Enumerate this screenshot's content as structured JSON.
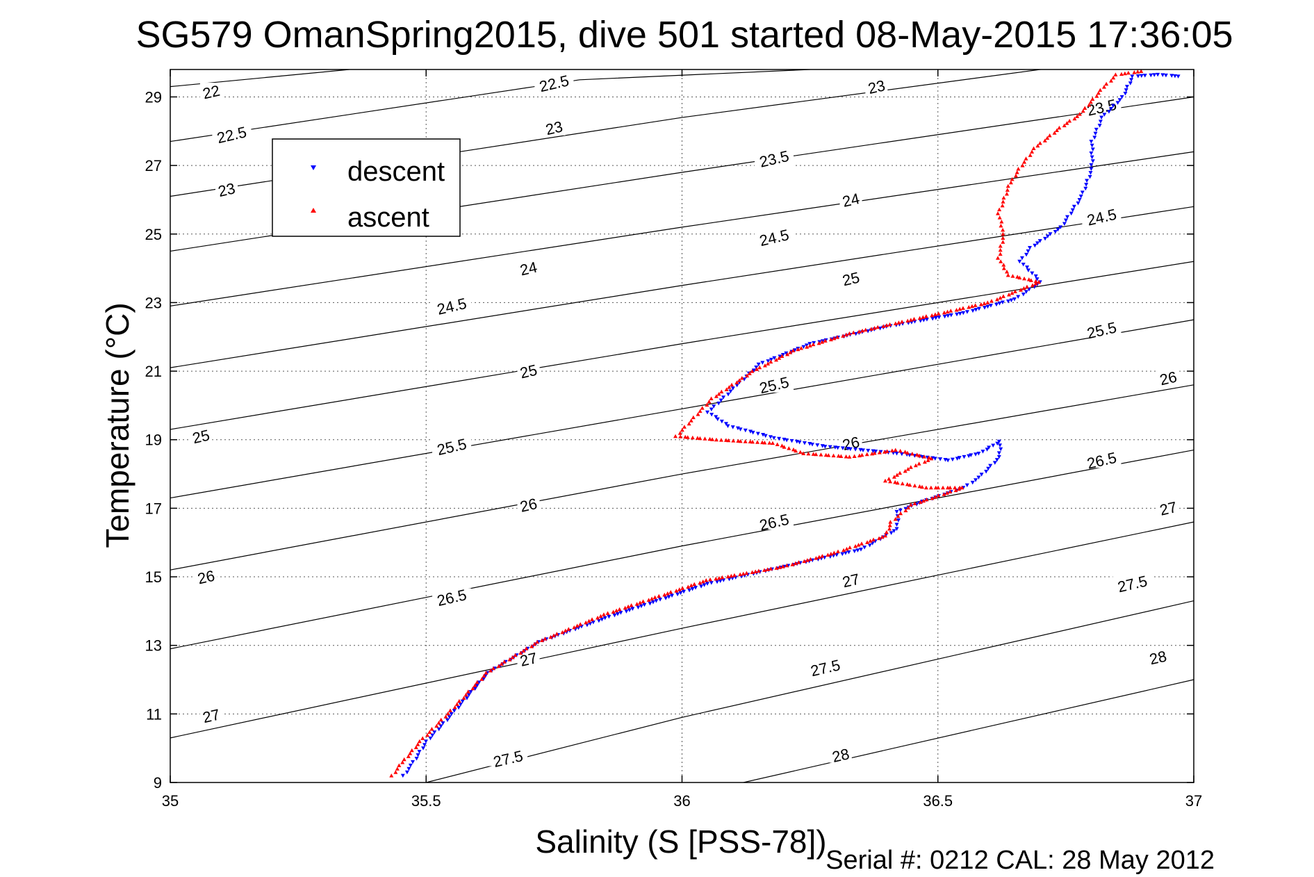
{
  "chart_data": {
    "type": "scatter",
    "title": "SG579 OmanSpring2015, dive 501 started 08-May-2015 17:36:05",
    "xlabel": "Salinity (S [PSS-78])",
    "ylabel": "Temperature (°C)",
    "footer": "Serial #: 0212  CAL: 28 May 2012",
    "xlim": [
      35,
      37
    ],
    "ylim": [
      9,
      29.8
    ],
    "xticks": [
      35,
      35.5,
      36,
      36.5,
      37
    ],
    "xtick_labels": [
      "35",
      "35.5",
      "36",
      "36.5",
      "37"
    ],
    "yticks": [
      9,
      11,
      13,
      15,
      17,
      19,
      21,
      23,
      25,
      27,
      29
    ],
    "ytick_labels": [
      "9",
      "11",
      "13",
      "15",
      "17",
      "19",
      "21",
      "23",
      "25",
      "27",
      "29"
    ],
    "grid": true,
    "legend_position": "upper-left",
    "colors": {
      "descent": "#0000ff",
      "ascent": "#ff0000",
      "axes": "#000000",
      "contour": "#000000",
      "grid": "#555555"
    },
    "sigma_contours": {
      "lines": [
        {
          "label": "22",
          "points": [
            [
              35.0,
              29.3
            ],
            [
              35.35,
              29.8
            ]
          ],
          "label_at": [
            [
              35.08,
              29.15
            ]
          ]
        },
        {
          "label": "22.5",
          "points": [
            [
              35.0,
              27.7
            ],
            [
              35.8,
              29.5
            ],
            [
              36.25,
              29.8
            ]
          ],
          "label_at": [
            [
              35.12,
              27.9
            ],
            [
              35.75,
              29.4
            ]
          ]
        },
        {
          "label": "23",
          "points": [
            [
              35.0,
              26.1
            ],
            [
              36.0,
              28.4
            ],
            [
              37.0,
              30.4
            ]
          ],
          "label_at": [
            [
              35.11,
              26.3
            ],
            [
              35.75,
              28.1
            ],
            [
              36.38,
              29.3
            ]
          ]
        },
        {
          "label": "23.5",
          "points": [
            [
              35.0,
              24.5
            ],
            [
              36.0,
              26.8
            ],
            [
              37.0,
              29.0
            ]
          ],
          "label_at": [
            [
              36.18,
              27.2
            ],
            [
              36.82,
              28.7
            ]
          ]
        },
        {
          "label": "24",
          "points": [
            [
              35.0,
              22.9
            ],
            [
              36.0,
              25.2
            ],
            [
              37.0,
              27.4
            ]
          ],
          "label_at": [
            [
              35.7,
              24.0
            ],
            [
              36.33,
              26.0
            ]
          ]
        },
        {
          "label": "24.5",
          "points": [
            [
              35.0,
              21.1
            ],
            [
              36.0,
              23.5
            ],
            [
              37.0,
              25.8
            ]
          ],
          "label_at": [
            [
              35.55,
              22.9
            ],
            [
              36.18,
              24.9
            ],
            [
              36.82,
              25.5
            ]
          ]
        },
        {
          "label": "25",
          "points": [
            [
              35.0,
              19.3
            ],
            [
              36.0,
              21.8
            ],
            [
              37.0,
              24.2
            ]
          ],
          "label_at": [
            [
              35.06,
              19.1
            ],
            [
              35.7,
              21.0
            ],
            [
              36.33,
              23.7
            ]
          ]
        },
        {
          "label": "25.5",
          "points": [
            [
              35.0,
              17.3
            ],
            [
              36.0,
              19.9
            ],
            [
              37.0,
              22.5
            ]
          ],
          "label_at": [
            [
              35.55,
              18.8
            ],
            [
              36.18,
              20.6
            ],
            [
              36.82,
              22.2
            ]
          ]
        },
        {
          "label": "26",
          "points": [
            [
              35.0,
              15.2
            ],
            [
              36.0,
              18.0
            ],
            [
              37.0,
              20.6
            ]
          ],
          "label_at": [
            [
              35.07,
              15.0
            ],
            [
              35.7,
              17.1
            ],
            [
              36.33,
              18.9
            ],
            [
              36.95,
              20.8
            ]
          ]
        },
        {
          "label": "26.5",
          "points": [
            [
              35.0,
              12.9
            ],
            [
              36.0,
              15.9
            ],
            [
              37.0,
              18.7
            ]
          ],
          "label_at": [
            [
              35.55,
              14.4
            ],
            [
              36.18,
              16.6
            ],
            [
              36.82,
              18.4
            ]
          ]
        },
        {
          "label": "27",
          "points": [
            [
              35.0,
              10.3
            ],
            [
              36.0,
              13.5
            ],
            [
              37.0,
              16.6
            ]
          ],
          "label_at": [
            [
              35.08,
              10.95
            ],
            [
              35.7,
              12.6
            ],
            [
              36.33,
              14.9
            ],
            [
              36.95,
              17.0
            ]
          ]
        },
        {
          "label": "27.5",
          "points": [
            [
              35.5,
              9.0
            ],
            [
              36.0,
              10.9
            ],
            [
              37.0,
              14.3
            ]
          ],
          "label_at": [
            [
              35.66,
              9.7
            ],
            [
              36.28,
              12.35
            ],
            [
              36.88,
              14.8
            ]
          ]
        },
        {
          "label": "28",
          "points": [
            [
              36.12,
              9.0
            ],
            [
              37.0,
              12.0
            ]
          ],
          "label_at": [
            [
              36.31,
              9.8
            ],
            [
              36.93,
              12.65
            ]
          ]
        }
      ]
    },
    "series": [
      {
        "name": "descent",
        "marker": "triangle-down",
        "profile": [
          [
            36.97,
            29.6
          ],
          [
            36.93,
            29.65
          ],
          [
            36.88,
            29.6
          ],
          [
            36.86,
            29.0
          ],
          [
            36.82,
            28.4
          ],
          [
            36.8,
            27.7
          ],
          [
            36.8,
            26.9
          ],
          [
            36.78,
            26.1
          ],
          [
            36.74,
            25.2
          ],
          [
            36.68,
            24.6
          ],
          [
            36.66,
            24.2
          ],
          [
            36.7,
            23.6
          ],
          [
            36.65,
            23.1
          ],
          [
            36.55,
            22.7
          ],
          [
            36.4,
            22.3
          ],
          [
            36.25,
            21.8
          ],
          [
            36.15,
            21.2
          ],
          [
            36.1,
            20.5
          ],
          [
            36.05,
            19.8
          ],
          [
            36.09,
            19.4
          ],
          [
            36.18,
            19.05
          ],
          [
            36.28,
            18.8
          ],
          [
            36.42,
            18.6
          ],
          [
            36.52,
            18.4
          ],
          [
            36.58,
            18.6
          ],
          [
            36.62,
            18.95
          ],
          [
            36.62,
            18.5
          ],
          [
            36.58,
            17.9
          ],
          [
            36.55,
            17.6
          ],
          [
            36.47,
            17.2
          ],
          [
            36.42,
            16.9
          ],
          [
            36.42,
            16.4
          ],
          [
            36.35,
            15.8
          ],
          [
            36.2,
            15.3
          ],
          [
            36.05,
            14.8
          ],
          [
            35.95,
            14.3
          ],
          [
            35.85,
            13.8
          ],
          [
            35.72,
            13.1
          ],
          [
            35.62,
            12.2
          ],
          [
            35.55,
            11.0
          ],
          [
            35.5,
            10.2
          ],
          [
            35.47,
            9.5
          ],
          [
            35.45,
            9.1
          ]
        ]
      },
      {
        "name": "ascent",
        "marker": "triangle-up",
        "profile": [
          [
            36.9,
            29.75
          ],
          [
            36.85,
            29.65
          ],
          [
            36.82,
            29.2
          ],
          [
            36.78,
            28.5
          ],
          [
            36.74,
            28.1
          ],
          [
            36.69,
            27.5
          ],
          [
            36.66,
            26.9
          ],
          [
            36.64,
            26.4
          ],
          [
            36.62,
            25.6
          ],
          [
            36.63,
            25.0
          ],
          [
            36.62,
            24.3
          ],
          [
            36.64,
            23.8
          ],
          [
            36.7,
            23.6
          ],
          [
            36.6,
            23.0
          ],
          [
            36.48,
            22.6
          ],
          [
            36.33,
            22.1
          ],
          [
            36.22,
            21.6
          ],
          [
            36.14,
            21.0
          ],
          [
            36.06,
            20.2
          ],
          [
            35.99,
            19.1
          ],
          [
            36.07,
            19.0
          ],
          [
            36.18,
            18.9
          ],
          [
            36.24,
            18.6
          ],
          [
            36.33,
            18.5
          ],
          [
            36.42,
            18.7
          ],
          [
            36.49,
            18.45
          ],
          [
            36.45,
            18.2
          ],
          [
            36.4,
            17.8
          ],
          [
            36.48,
            17.6
          ],
          [
            36.55,
            17.6
          ],
          [
            36.45,
            17.1
          ],
          [
            36.41,
            16.6
          ],
          [
            36.4,
            16.2
          ],
          [
            36.3,
            15.7
          ],
          [
            36.2,
            15.3
          ],
          [
            36.05,
            14.9
          ],
          [
            35.95,
            14.4
          ],
          [
            35.85,
            13.9
          ],
          [
            35.72,
            13.1
          ],
          [
            35.62,
            12.2
          ],
          [
            35.55,
            11.1
          ],
          [
            35.49,
            10.2
          ],
          [
            35.45,
            9.5
          ],
          [
            35.43,
            9.1
          ]
        ]
      }
    ]
  }
}
